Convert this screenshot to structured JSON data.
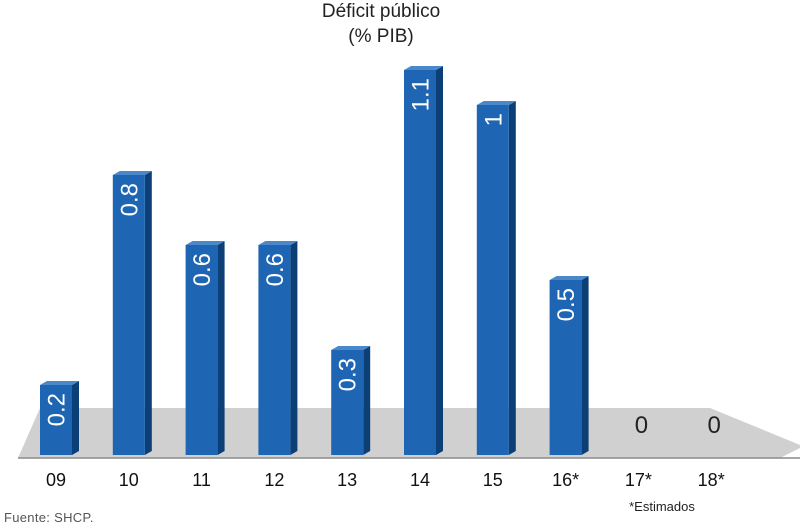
{
  "chart_data": {
    "type": "bar",
    "title": "Déficit público",
    "subtitle": "(% PIB)",
    "categories": [
      "09",
      "10",
      "11",
      "12",
      "13",
      "14",
      "15",
      "16*",
      "17*",
      "18*"
    ],
    "values": [
      0.2,
      0.8,
      0.6,
      0.6,
      0.3,
      1.1,
      1,
      0.5,
      0,
      0
    ],
    "value_labels": [
      "0.2",
      "0.8",
      "0.6",
      "0.6",
      "0.3",
      "1.1",
      "1",
      "0.5",
      "0",
      "0"
    ],
    "ylim": [
      0,
      1.1
    ],
    "grid": false,
    "legend": "none",
    "note": "*Estimados",
    "colors": {
      "bar_front": "#1e66b3",
      "bar_side": "#0d3f77",
      "bar_top": "#4a88c9",
      "floor": "#d0d0d0"
    }
  },
  "source": "Fuente: SHCP."
}
